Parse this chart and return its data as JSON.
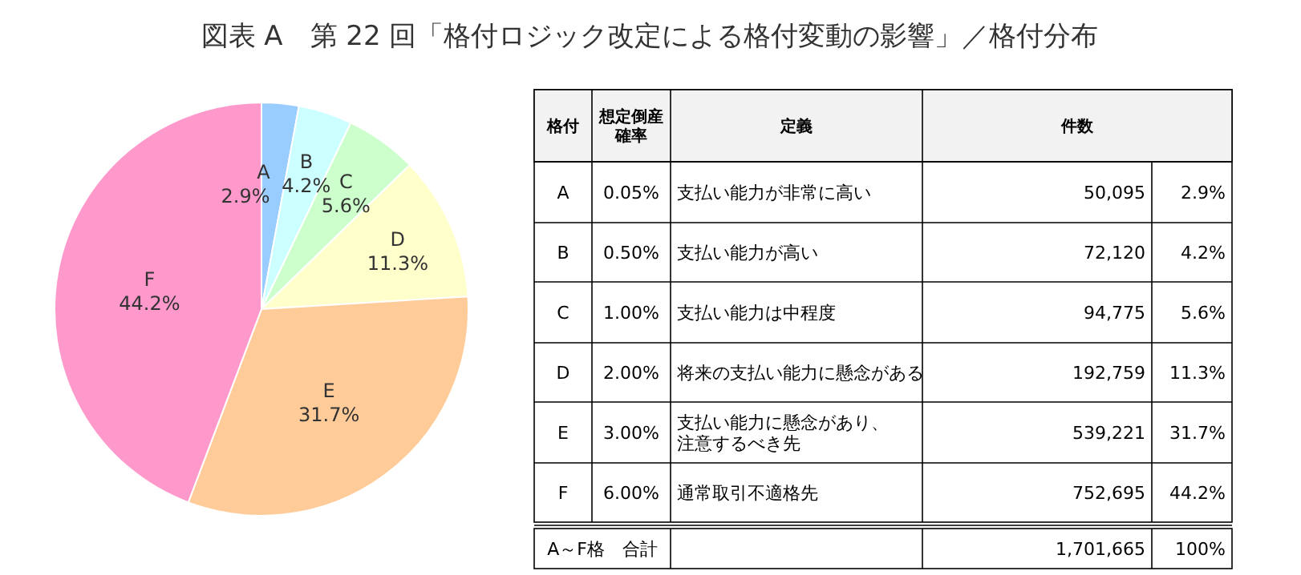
{
  "chart_data": [
    {
      "type": "pie",
      "title": "図表 A　第 22 回「格付ロジック改定による格付変動の影響」／格付分布",
      "categories": [
        "A",
        "B",
        "C",
        "D",
        "E",
        "F"
      ],
      "values": [
        2.9,
        4.2,
        5.6,
        11.3,
        31.7,
        44.2
      ],
      "colors": [
        "#99ccff",
        "#ccffff",
        "#ccffcc",
        "#ffffcc",
        "#ffcc99",
        "#ff99cc"
      ],
      "value_labels": [
        "2.9%",
        "4.2%",
        "5.6%",
        "11.3%",
        "31.7%",
        "44.2%"
      ]
    },
    {
      "type": "other",
      "annotations": [
        "格付",
        "想定倒産確率",
        "定義",
        "件数",
        "A",
        "0.05%",
        "支払い能力が非常に高い",
        "50,095",
        "2.9%",
        "B",
        "0.50%",
        "支払い能力が高い",
        "72,120",
        "4.2%",
        "C",
        "1.00%",
        "支払い能力は中程度",
        "94,775",
        "5.6%",
        "D",
        "2.00%",
        "将来の支払い能力に懸念がある",
        "192,759",
        "11.3%",
        "E",
        "3.00%",
        "支払い能力に懸念があり、注意するべき先",
        "539,221",
        "31.7%",
        "F",
        "6.00%",
        "通常取引不適格先",
        "752,695",
        "44.2%",
        "A～F格　合計",
        "1,701,665",
        "100%"
      ]
    }
  ]
}
